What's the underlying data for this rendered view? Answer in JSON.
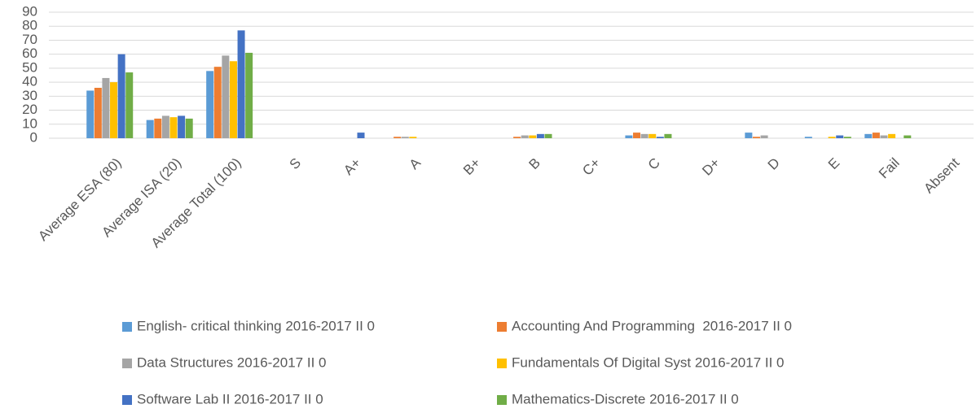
{
  "chart_data": {
    "type": "bar",
    "categories": [
      "Average ESA (80)",
      "Average ISA (20)",
      "Average Total (100)",
      "S",
      "A+",
      "A",
      "B+",
      "B",
      "C+",
      "C",
      "D+",
      "D",
      "E",
      "Fail",
      "Absent"
    ],
    "series": [
      {
        "name": "English- critical thinking 2016-2017 II 0",
        "color": "#5b9bd5",
        "values": [
          34,
          13,
          48,
          0,
          0,
          0,
          0,
          0,
          0,
          2,
          0,
          4,
          1,
          3,
          0
        ]
      },
      {
        "name": "Accounting And Programming  2016-2017 II 0",
        "color": "#ed7d31",
        "values": [
          36,
          14,
          51,
          0,
          0,
          1,
          0,
          1,
          0,
          4,
          0,
          1,
          0,
          4,
          0
        ]
      },
      {
        "name": "Data Structures 2016-2017 II 0",
        "color": "#a5a5a5",
        "values": [
          43,
          16,
          59,
          0,
          0,
          1,
          0,
          2,
          0,
          3,
          0,
          2,
          0,
          2,
          0
        ]
      },
      {
        "name": "Fundamentals Of Digital Syst 2016-2017 II 0",
        "color": "#ffc000",
        "values": [
          40,
          15,
          55,
          0,
          0,
          1,
          0,
          2,
          0,
          3,
          0,
          0,
          1,
          3,
          0
        ]
      },
      {
        "name": "Software Lab II 2016-2017 II 0",
        "color": "#4472c4",
        "values": [
          60,
          16,
          77,
          0,
          4,
          0,
          0,
          3,
          0,
          1,
          0,
          0,
          2,
          0,
          0
        ]
      },
      {
        "name": "Mathematics-Discrete 2016-2017 II 0",
        "color": "#70ad47",
        "values": [
          47,
          14,
          61,
          0,
          0,
          0,
          0,
          3,
          0,
          3,
          0,
          0,
          1,
          2,
          0
        ]
      }
    ],
    "ylim": [
      0,
      90
    ],
    "yticks": [
      0,
      10,
      20,
      30,
      40,
      50,
      60,
      70,
      80,
      90
    ],
    "grid": true,
    "legend": "bottom"
  }
}
